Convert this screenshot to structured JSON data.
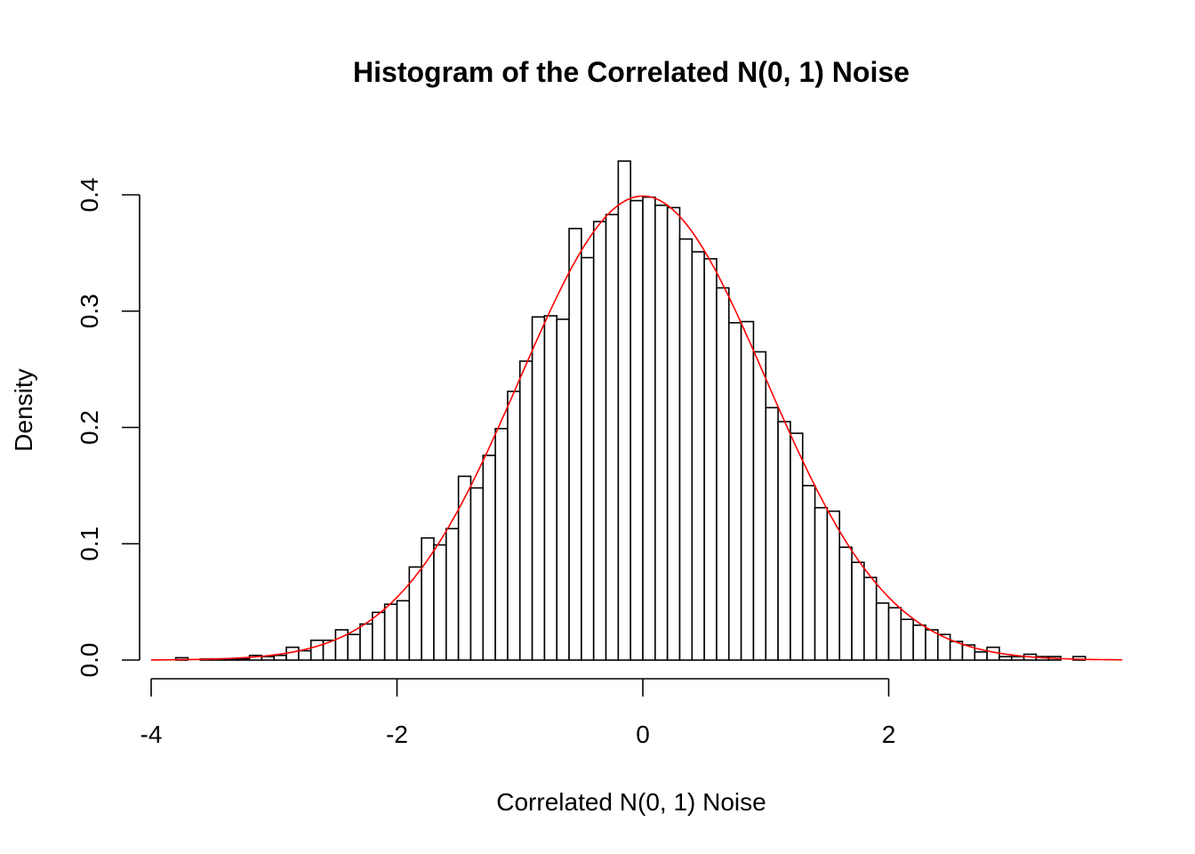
{
  "chart_data": {
    "type": "bar",
    "title": "Histogram of the Correlated N(0, 1) Noise",
    "xlabel": "Correlated N(0, 1) Noise",
    "ylabel": "Density",
    "xlim": [
      -4,
      3.9
    ],
    "ylim": [
      0,
      0.43
    ],
    "x_ticks": [
      -4,
      -2,
      0,
      2
    ],
    "x_tick_labels": [
      "-4",
      "-2",
      "0",
      "2"
    ],
    "y_ticks": [
      0,
      0.1,
      0.2,
      0.3,
      0.4
    ],
    "y_tick_labels": [
      "0.0",
      "0.1",
      "0.2",
      "0.3",
      "0.4"
    ],
    "grid": false,
    "bin_start": -3.8,
    "bin_width": 0.1,
    "densities": [
      0.002,
      0.0,
      0.001,
      0.001,
      0.001,
      0.001,
      0.004,
      0.003,
      0.004,
      0.011,
      0.008,
      0.017,
      0.017,
      0.026,
      0.022,
      0.031,
      0.041,
      0.048,
      0.051,
      0.08,
      0.105,
      0.099,
      0.113,
      0.158,
      0.148,
      0.176,
      0.199,
      0.231,
      0.257,
      0.295,
      0.296,
      0.293,
      0.371,
      0.346,
      0.377,
      0.383,
      0.429,
      0.395,
      0.398,
      0.391,
      0.389,
      0.362,
      0.351,
      0.345,
      0.32,
      0.29,
      0.291,
      0.265,
      0.217,
      0.205,
      0.195,
      0.15,
      0.131,
      0.128,
      0.097,
      0.084,
      0.071,
      0.049,
      0.045,
      0.035,
      0.03,
      0.026,
      0.022,
      0.016,
      0.013,
      0.007,
      0.011,
      0.003,
      0.003,
      0.005,
      0.003,
      0.003,
      0.0,
      0.003
    ],
    "overlay": {
      "type": "line",
      "function": "normal density",
      "mean": 0,
      "sd": 1,
      "range": [
        -4,
        3.9
      ],
      "color": "#ff0000"
    },
    "bar_fill": "#ffffff",
    "bar_stroke": "#000000"
  }
}
